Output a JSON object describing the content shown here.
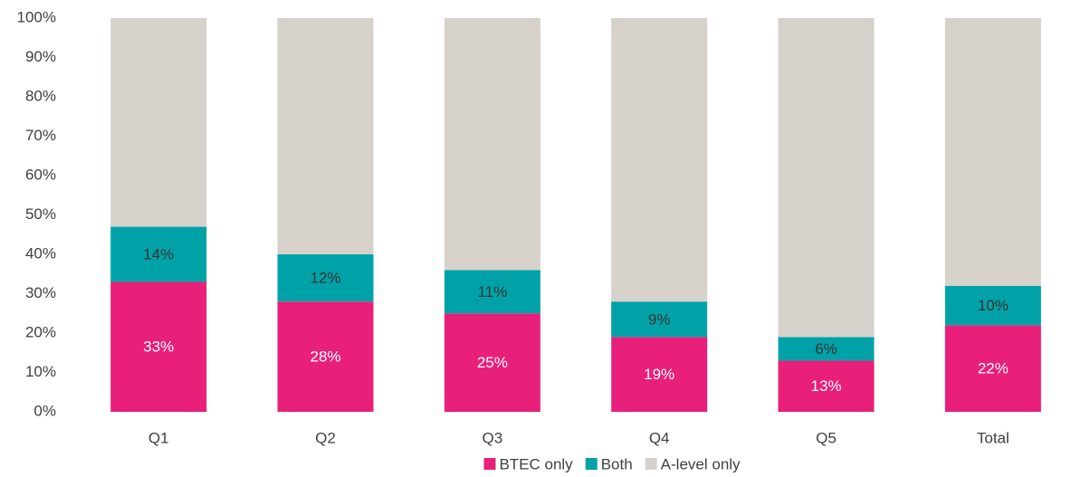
{
  "chart_data": {
    "type": "stacked_bar",
    "categories": [
      "Q1",
      "Q2",
      "Q3",
      "Q4",
      "Q5",
      "Total"
    ],
    "series": [
      {
        "name": "BTEC only",
        "color": "#e8207a",
        "values": [
          33,
          28,
          25,
          19,
          13,
          22
        ],
        "value_labels": [
          "33%",
          "28%",
          "25%",
          "19%",
          "13%",
          "22%"
        ]
      },
      {
        "name": "Both",
        "color": "#00a2a8",
        "values": [
          14,
          12,
          11,
          9,
          6,
          10
        ],
        "value_labels": [
          "14%",
          "12%",
          "11%",
          "9%",
          "6%",
          "10%"
        ]
      },
      {
        "name": "A-level only",
        "color": "#d6d1cb",
        "values": [
          53,
          60,
          64,
          72,
          81,
          68
        ]
      }
    ],
    "ylim": [
      0,
      100
    ],
    "yticks": [
      {
        "value": 0,
        "label": "0%"
      },
      {
        "value": 10,
        "label": "10%"
      },
      {
        "value": 20,
        "label": "20%"
      },
      {
        "value": 30,
        "label": "30%"
      },
      {
        "value": 40,
        "label": "40%"
      },
      {
        "value": 50,
        "label": "50%"
      },
      {
        "value": 60,
        "label": "60%"
      },
      {
        "value": 70,
        "label": "70%"
      },
      {
        "value": 80,
        "label": "80%"
      },
      {
        "value": 90,
        "label": "90%"
      },
      {
        "value": 100,
        "label": "100%"
      }
    ],
    "grid": false,
    "legend": "bottom"
  }
}
